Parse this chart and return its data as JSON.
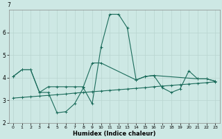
{
  "xlabel": "Humidex (Indice chaleur)",
  "bg_color": "#cde8e4",
  "grid_color": "#b8d4cf",
  "line_color": "#1a6b5a",
  "xlim": [
    -0.5,
    23.5
  ],
  "ylim": [
    2,
    7
  ],
  "yticks": [
    2,
    3,
    4,
    5,
    6
  ],
  "ytick_labels": [
    "2",
    "3",
    "4",
    "5",
    "6"
  ],
  "xticks": [
    0,
    1,
    2,
    3,
    4,
    5,
    6,
    7,
    8,
    9,
    10,
    11,
    12,
    13,
    14,
    15,
    16,
    17,
    18,
    19,
    20,
    21,
    22,
    23
  ],
  "series": {
    "line1": [
      4.05,
      4.35,
      4.35,
      3.35,
      3.35,
      2.45,
      2.5,
      2.85,
      3.55,
      2.85,
      5.35,
      6.8,
      6.8,
      6.2,
      3.9,
      4.05,
      4.1,
      3.55,
      3.35,
      3.5,
      4.3,
      3.95,
      3.95,
      3.85
    ],
    "line2_x": [
      0,
      1,
      2,
      3,
      4,
      5,
      6,
      7,
      8,
      9,
      10,
      14,
      15,
      16,
      21,
      22,
      23
    ],
    "line2_y": [
      4.05,
      4.35,
      4.35,
      3.35,
      3.6,
      3.6,
      3.6,
      3.6,
      3.6,
      4.65,
      4.65,
      3.9,
      4.05,
      4.1,
      3.95,
      3.95,
      3.85
    ],
    "line3": [
      3.1,
      3.13,
      3.16,
      3.19,
      3.22,
      3.25,
      3.28,
      3.32,
      3.35,
      3.38,
      3.41,
      3.44,
      3.47,
      3.5,
      3.53,
      3.56,
      3.6,
      3.63,
      3.66,
      3.69,
      3.72,
      3.75,
      3.78,
      3.82
    ]
  }
}
